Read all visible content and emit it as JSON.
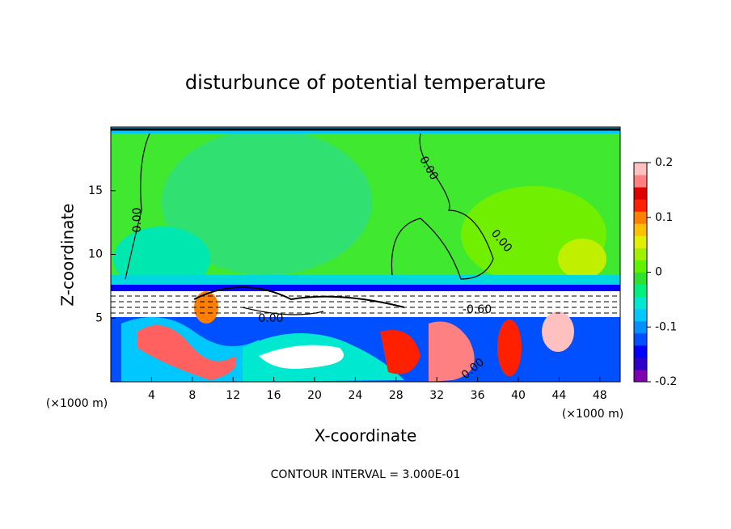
{
  "chart_data": {
    "type": "contour",
    "title": "disturbunce of potential temperature",
    "x_label": "X-coordinate",
    "y_label": "Z-coordinate",
    "x_unit": "(×1000 m)",
    "y_unit": "(×1000 m)",
    "xlim": [
      0,
      50
    ],
    "ylim": [
      0,
      20
    ],
    "xticks": [
      4,
      8,
      12,
      16,
      20,
      24,
      28,
      32,
      36,
      40,
      44,
      48
    ],
    "yticks": [
      5,
      10,
      15
    ],
    "colorbar": {
      "lim": [
        -0.2,
        0.2
      ],
      "ticks": [
        -0.2,
        -0.1,
        0,
        0.1,
        0.2
      ],
      "colors": [
        "#7f00b0",
        "#3000c8",
        "#0000ff",
        "#0050ff",
        "#0090ff",
        "#00c8ff",
        "#00e8d0",
        "#00f080",
        "#30e030",
        "#60f000",
        "#a0f000",
        "#e0f000",
        "#ffc000",
        "#ff8000",
        "#ff2000",
        "#e00000",
        "#ff8080",
        "#ffc0c0"
      ]
    },
    "contour_labels": [
      "0.00",
      "0.00",
      "0.00",
      "0.00",
      "-0.60",
      "0.00"
    ],
    "note": "CONTOUR INTERVAL = 3.000E-01"
  }
}
